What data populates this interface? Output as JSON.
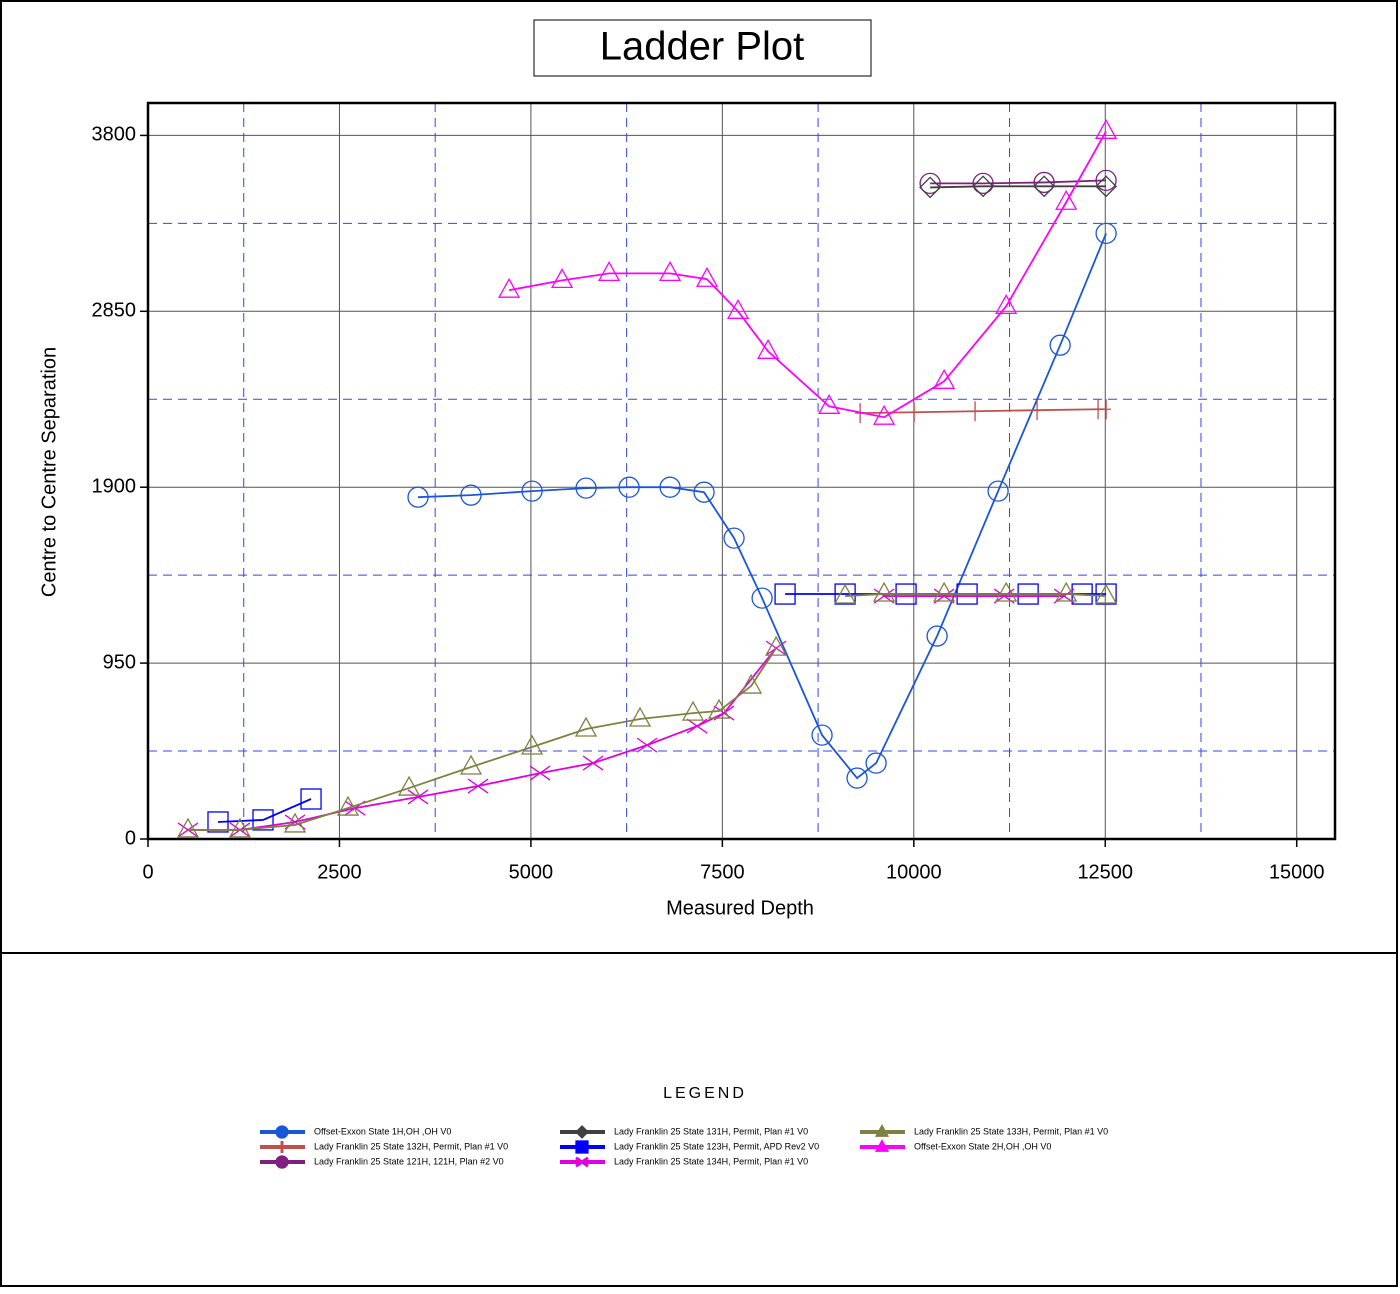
{
  "chart_data": {
    "type": "line",
    "title": "Ladder Plot",
    "x_label": "Measured Depth",
    "y_label": "Centre to Centre Separation",
    "legend_title": "LEGEND",
    "xlim": [
      0,
      15500
    ],
    "ylim": [
      0,
      3975
    ],
    "xticks": [
      0,
      2500,
      5000,
      7500,
      10000,
      12500,
      15000
    ],
    "yticks": [
      0,
      950,
      1900,
      2850,
      3800
    ],
    "x_minor_grid": [
      1250,
      3750,
      6250,
      8750,
      11250,
      13750
    ],
    "y_minor_grid": [
      475,
      1425,
      2375,
      3325
    ],
    "grid": true,
    "series": [
      {
        "name": "Offset-Exxon State 1H,OH ,OH V0",
        "color": "#1a56db",
        "marker": "circle",
        "x": [
          3526,
          4218,
          5015,
          5720,
          6282,
          6817,
          7261,
          7653,
          8019,
          8802,
          9259,
          9508,
          10304,
          11101,
          11911,
          12511
        ],
        "values": [
          1846,
          1857,
          1879,
          1895,
          1900,
          1900,
          1873,
          1625,
          1301,
          561,
          329,
          410,
          1096,
          1879,
          2667,
          3271
        ]
      },
      {
        "name": "Lady Franklin 25 State 132H, Permit, Plan #1 V0",
        "color": "#c0504d",
        "marker": "plus",
        "x": [
          9299,
          10004,
          10800,
          11610,
          12406,
          12511
        ],
        "values": [
          2300,
          2305,
          2310,
          2316,
          2321,
          2321
        ]
      },
      {
        "name": "Lady Franklin 25 State 121H, 121H, Plan #2 V0",
        "color": "#7f1f7f",
        "marker": "circle",
        "x": [
          10213,
          10905,
          11702,
          12511
        ],
        "values": [
          3541,
          3541,
          3546,
          3557
        ]
      },
      {
        "name": "Lady Franklin 25 State 131H, Permit, Plan #1 V0",
        "color": "#404040",
        "marker": "diamond",
        "x": [
          10213,
          10905,
          11702,
          12511
        ],
        "values": [
          3519,
          3525,
          3525,
          3525
        ]
      },
      {
        "name": "Lady Franklin 25 State 123H, Permit, APD Rev2 V0",
        "color": "#0000ff",
        "marker": "square",
        "x": [
          914,
          1502,
          2129,
          5000,
          8319,
          9103,
          9899,
          10696,
          11493,
          12198,
          12511
        ],
        "values": [
          92,
          103,
          216,
          null,
          1323,
          1323,
          1323,
          1323,
          1323,
          1323,
          1323
        ]
      },
      {
        "name": "Lady Franklin 25 State 134H, Permit, Plan #1 V0",
        "color": "#e000e0",
        "marker": "x",
        "x": [
          522,
          1201,
          1920,
          2704,
          3526,
          4310,
          5120,
          5812,
          6517,
          7170,
          7522,
          8202,
          9000,
          9612,
          10396,
          11180,
          11963
        ],
        "values": [
          49,
          49,
          92,
          167,
          227,
          286,
          356,
          410,
          507,
          610,
          680,
          1031,
          null,
          1312,
          1312,
          1312,
          1312
        ]
      },
      {
        "name": "Lady Franklin 25 State 133H, Permit, Plan #1 V0",
        "color": "#808040",
        "marker": "triangle",
        "x": [
          522,
          1201,
          1920,
          2612,
          3409,
          4218,
          5015,
          5720,
          6425,
          7117,
          7457,
          7875,
          8202,
          8700,
          9103,
          9612,
          10396,
          11206,
          11990,
          12511
        ],
        "values": [
          49,
          49,
          76,
          167,
          275,
          389,
          497,
          594,
          648,
          680,
          691,
          826,
          1031,
          null,
          1312,
          1323,
          1323,
          1323,
          1323,
          1312
        ]
      },
      {
        "name": "Offset-Exxon State 2H,OH ,OH V0",
        "color": "#ff00ff",
        "marker": "triangle",
        "x": [
          4715,
          5407,
          6021,
          6817,
          7300,
          7705,
          8097,
          8894,
          9612,
          10396,
          11206,
          11990,
          12511
        ],
        "values": [
          2964,
          3017,
          3055,
          3055,
          3023,
          2850,
          2634,
          2337,
          2278,
          2472,
          2877,
          3439,
          3822
        ]
      }
    ]
  }
}
